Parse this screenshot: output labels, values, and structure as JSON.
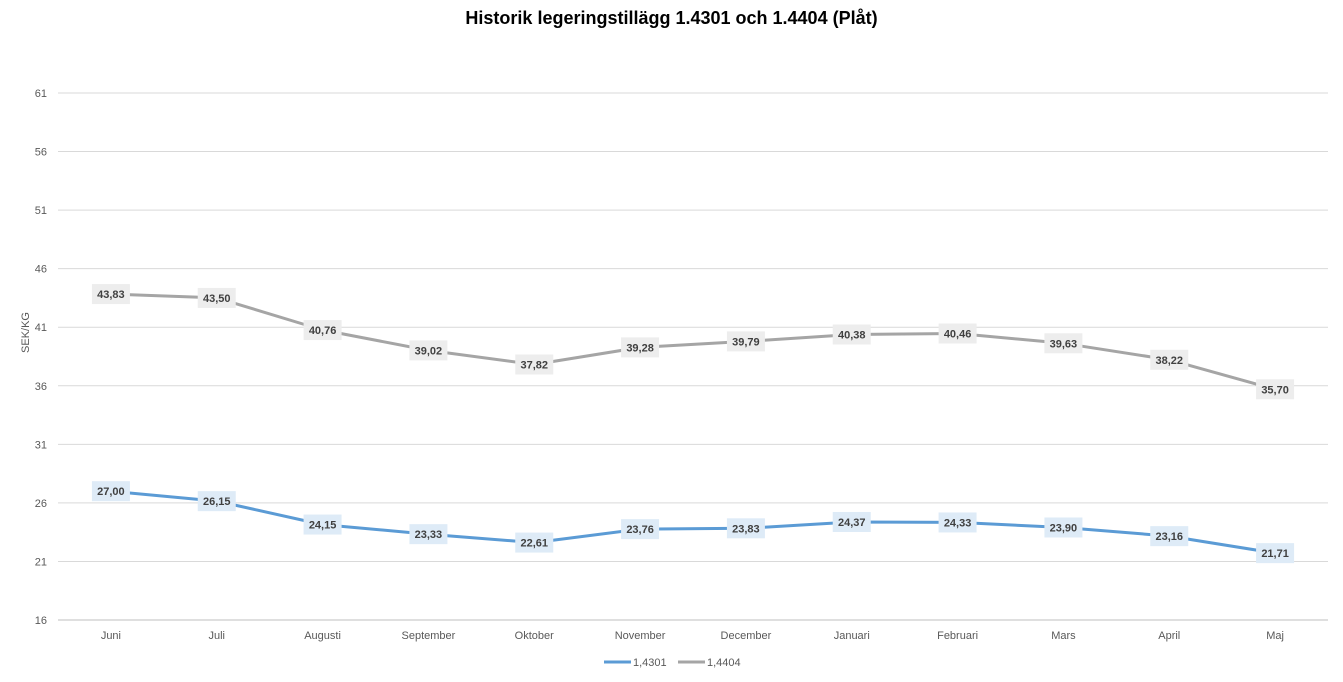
{
  "chart_data": {
    "type": "line",
    "title": "Historik legeringstillägg 1.4301 och 1.4404 (Plåt)",
    "xlabel": "",
    "ylabel": "SEK/KG",
    "ylim": [
      16,
      61
    ],
    "yticks": [
      16,
      21,
      26,
      31,
      36,
      41,
      46,
      51,
      56,
      61
    ],
    "categories": [
      "Juni",
      "Juli",
      "Augusti",
      "September",
      "Oktober",
      "November",
      "December",
      "Januari",
      "Februari",
      "Mars",
      "April",
      "Maj"
    ],
    "grid": true,
    "legend": "bottom-center",
    "series": [
      {
        "name": "1,4301",
        "color": "#5B9BD5",
        "label_bg": "#DEEBF7",
        "values": [
          27.0,
          26.15,
          24.15,
          23.33,
          22.61,
          23.76,
          23.83,
          24.37,
          24.33,
          23.9,
          23.16,
          21.71
        ],
        "labels": [
          "27,00",
          "26,15",
          "24,15",
          "23,33",
          "22,61",
          "23,76",
          "23,83",
          "24,37",
          "24,33",
          "23,90",
          "23,16",
          "21,71"
        ]
      },
      {
        "name": "1,4404",
        "color": "#A5A5A5",
        "label_bg": "#EDEDED",
        "values": [
          43.83,
          43.5,
          40.76,
          39.02,
          37.82,
          39.28,
          39.79,
          40.38,
          40.46,
          39.63,
          38.22,
          35.7
        ],
        "labels": [
          "43,83",
          "43,50",
          "40,76",
          "39,02",
          "37,82",
          "39,28",
          "39,79",
          "40,38",
          "40,46",
          "39,63",
          "38,22",
          "35,70"
        ]
      }
    ]
  }
}
